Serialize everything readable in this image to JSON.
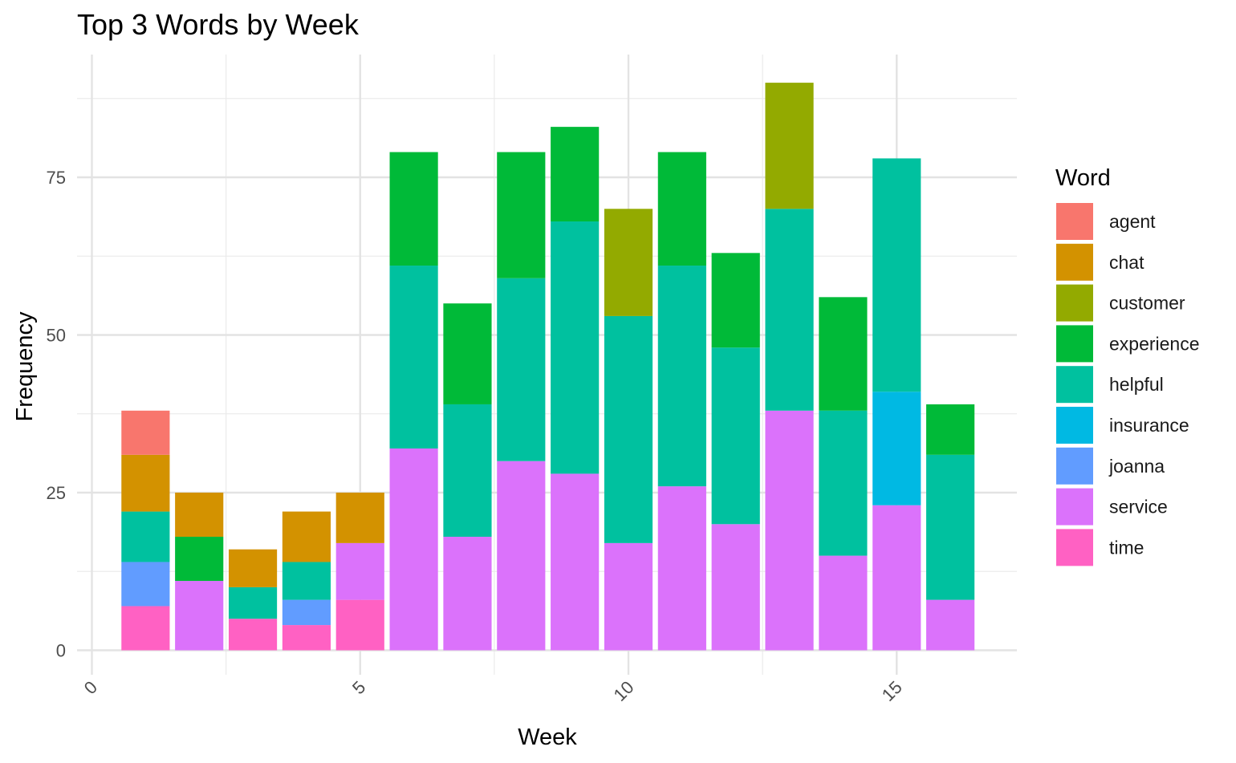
{
  "chart_data": {
    "type": "bar",
    "stacked": true,
    "title": "Top 3 Words by Week",
    "xlabel": "Week",
    "ylabel": "Frequency",
    "xlim": [
      0,
      17
    ],
    "ylim": [
      0,
      90
    ],
    "x_ticks": [
      0,
      5,
      10,
      15
    ],
    "y_ticks": [
      0,
      25,
      50,
      75
    ],
    "grid": true,
    "legend": {
      "title": "Word",
      "position": "right"
    },
    "categories": [
      "agent",
      "chat",
      "customer",
      "experience",
      "helpful",
      "insurance",
      "joanna",
      "service",
      "time"
    ],
    "colors": {
      "agent": "#F8766D",
      "chat": "#D39200",
      "customer": "#93AA00",
      "experience": "#00BA38",
      "helpful": "#00C19F",
      "insurance": "#00B9E3",
      "joanna": "#619CFF",
      "service": "#DB72FB",
      "time": "#FF61C3"
    },
    "weeks": [
      {
        "week": 1,
        "segments": [
          {
            "word": "time",
            "value": 7
          },
          {
            "word": "joanna",
            "value": 7
          },
          {
            "word": "helpful",
            "value": 8
          },
          {
            "word": "chat",
            "value": 9
          },
          {
            "word": "agent",
            "value": 7
          }
        ]
      },
      {
        "week": 2,
        "segments": [
          {
            "word": "service",
            "value": 11
          },
          {
            "word": "experience",
            "value": 7
          },
          {
            "word": "chat",
            "value": 7
          }
        ]
      },
      {
        "week": 3,
        "segments": [
          {
            "word": "time",
            "value": 5
          },
          {
            "word": "helpful",
            "value": 5
          },
          {
            "word": "chat",
            "value": 6
          }
        ]
      },
      {
        "week": 4,
        "segments": [
          {
            "word": "time",
            "value": 4
          },
          {
            "word": "joanna",
            "value": 4
          },
          {
            "word": "helpful",
            "value": 6
          },
          {
            "word": "chat",
            "value": 8
          }
        ]
      },
      {
        "week": 5,
        "segments": [
          {
            "word": "time",
            "value": 8
          },
          {
            "word": "service",
            "value": 9
          },
          {
            "word": "chat",
            "value": 8
          }
        ]
      },
      {
        "week": 6,
        "segments": [
          {
            "word": "service",
            "value": 32
          },
          {
            "word": "helpful",
            "value": 29
          },
          {
            "word": "experience",
            "value": 18
          }
        ]
      },
      {
        "week": 7,
        "segments": [
          {
            "word": "service",
            "value": 18
          },
          {
            "word": "helpful",
            "value": 21
          },
          {
            "word": "experience",
            "value": 16
          }
        ]
      },
      {
        "week": 8,
        "segments": [
          {
            "word": "service",
            "value": 30
          },
          {
            "word": "helpful",
            "value": 29
          },
          {
            "word": "experience",
            "value": 20
          }
        ]
      },
      {
        "week": 9,
        "segments": [
          {
            "word": "service",
            "value": 28
          },
          {
            "word": "helpful",
            "value": 40
          },
          {
            "word": "experience",
            "value": 15
          }
        ]
      },
      {
        "week": 10,
        "segments": [
          {
            "word": "service",
            "value": 17
          },
          {
            "word": "helpful",
            "value": 36
          },
          {
            "word": "customer",
            "value": 17
          }
        ]
      },
      {
        "week": 11,
        "segments": [
          {
            "word": "service",
            "value": 26
          },
          {
            "word": "helpful",
            "value": 35
          },
          {
            "word": "experience",
            "value": 18
          }
        ]
      },
      {
        "week": 12,
        "segments": [
          {
            "word": "service",
            "value": 20
          },
          {
            "word": "helpful",
            "value": 28
          },
          {
            "word": "experience",
            "value": 15
          }
        ]
      },
      {
        "week": 13,
        "segments": [
          {
            "word": "service",
            "value": 38
          },
          {
            "word": "helpful",
            "value": 32
          },
          {
            "word": "customer",
            "value": 20
          }
        ]
      },
      {
        "week": 14,
        "segments": [
          {
            "word": "service",
            "value": 15
          },
          {
            "word": "helpful",
            "value": 23
          },
          {
            "word": "experience",
            "value": 18
          }
        ]
      },
      {
        "week": 15,
        "segments": [
          {
            "word": "service",
            "value": 23
          },
          {
            "word": "insurance",
            "value": 18
          },
          {
            "word": "helpful",
            "value": 37
          }
        ]
      },
      {
        "week": 16,
        "segments": [
          {
            "word": "service",
            "value": 8
          },
          {
            "word": "helpful",
            "value": 23
          },
          {
            "word": "experience",
            "value": 8
          }
        ]
      }
    ]
  }
}
